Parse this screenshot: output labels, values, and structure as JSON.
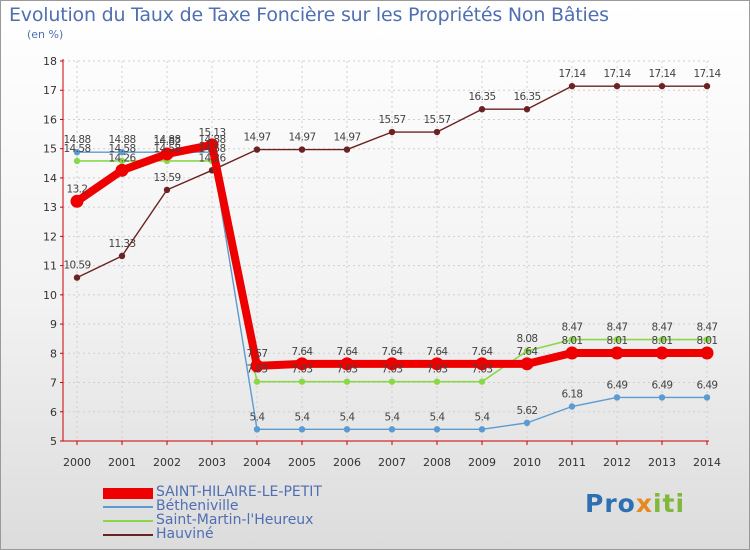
{
  "chart_data": {
    "type": "line",
    "title": "Evolution du Taux de Taxe Foncière sur les Propriétés Non Bâties",
    "ylabel": "(en %)",
    "xlabel": "",
    "ylim": [
      5,
      18
    ],
    "yticks": [
      "5",
      "6",
      "7",
      "8",
      "9",
      "10",
      "11",
      "12",
      "13",
      "14",
      "15",
      "16",
      "17",
      "18"
    ],
    "categories": [
      "2000",
      "2001",
      "2002",
      "2003",
      "2004",
      "2005",
      "2006",
      "2007",
      "2008",
      "2009",
      "2010",
      "2011",
      "2012",
      "2013",
      "2014"
    ],
    "series": [
      {
        "name": "Hauviné",
        "color": "#6b2222",
        "values": [
          10.59,
          11.33,
          13.59,
          14.26,
          14.97,
          14.97,
          14.97,
          15.57,
          15.57,
          16.35,
          16.35,
          17.14,
          17.14,
          17.14,
          17.14
        ],
        "labels": [
          "10.59",
          "11.33",
          "13.59",
          "14.26",
          "14.97",
          "14.97",
          "14.97",
          "15.57",
          "15.57",
          "16.35",
          "16.35",
          "17.14",
          "17.14",
          "17.14",
          "17.14"
        ]
      },
      {
        "name": "Bétheniville",
        "color": "#5b9bd1",
        "values": [
          14.88,
          14.88,
          14.88,
          14.88,
          5.4,
          5.4,
          5.4,
          5.4,
          5.4,
          5.4,
          5.62,
          6.18,
          6.49,
          6.49,
          6.49
        ],
        "labels": [
          "14.88",
          "14.88",
          "14.88",
          "14.88",
          "5.4",
          "5.4",
          "5.4",
          "5.4",
          "5.4",
          "5.4",
          "5.62",
          "6.18",
          "6.49",
          "6.49",
          "6.49"
        ]
      },
      {
        "name": "Saint-Martin-l'Heureux",
        "color": "#8ad84a",
        "values": [
          14.58,
          14.58,
          14.58,
          14.58,
          7.03,
          7.03,
          7.03,
          7.03,
          7.03,
          7.03,
          8.08,
          8.47,
          8.47,
          8.47,
          8.47
        ],
        "labels": [
          "14.58",
          "14.58",
          "14.58",
          "14.58",
          "7.03",
          "7.03",
          "7.03",
          "7.03",
          "7.03",
          "7.03",
          "8.08",
          "8.47",
          "8.47",
          "8.47",
          "8.47"
        ]
      },
      {
        "name": "SAINT-HILAIRE-LE-PETIT",
        "color": "#ee0000",
        "values": [
          13.2,
          14.26,
          14.82,
          15.13,
          7.57,
          7.64,
          7.64,
          7.64,
          7.64,
          7.64,
          7.64,
          8.01,
          8.01,
          8.01,
          8.01
        ],
        "labels": [
          "13.2",
          "14.26",
          "14.82",
          "15.13",
          "7.57",
          "7.64",
          "7.64",
          "7.64",
          "7.64",
          "7.64",
          "7.64",
          "8.01",
          "8.01",
          "8.01",
          "8.01"
        ]
      }
    ],
    "legend": [
      {
        "name": "SAINT-HILAIRE-LE-PETIT",
        "color": "#ee0000"
      },
      {
        "name": "Bétheniville",
        "color": "#5b9bd1"
      },
      {
        "name": "Saint-Martin-l'Heureux",
        "color": "#8ad84a"
      },
      {
        "name": "Hauviné",
        "color": "#6b2222"
      }
    ]
  },
  "brand": {
    "part1": "Pro",
    "part2": "x",
    "part3": "iti"
  }
}
